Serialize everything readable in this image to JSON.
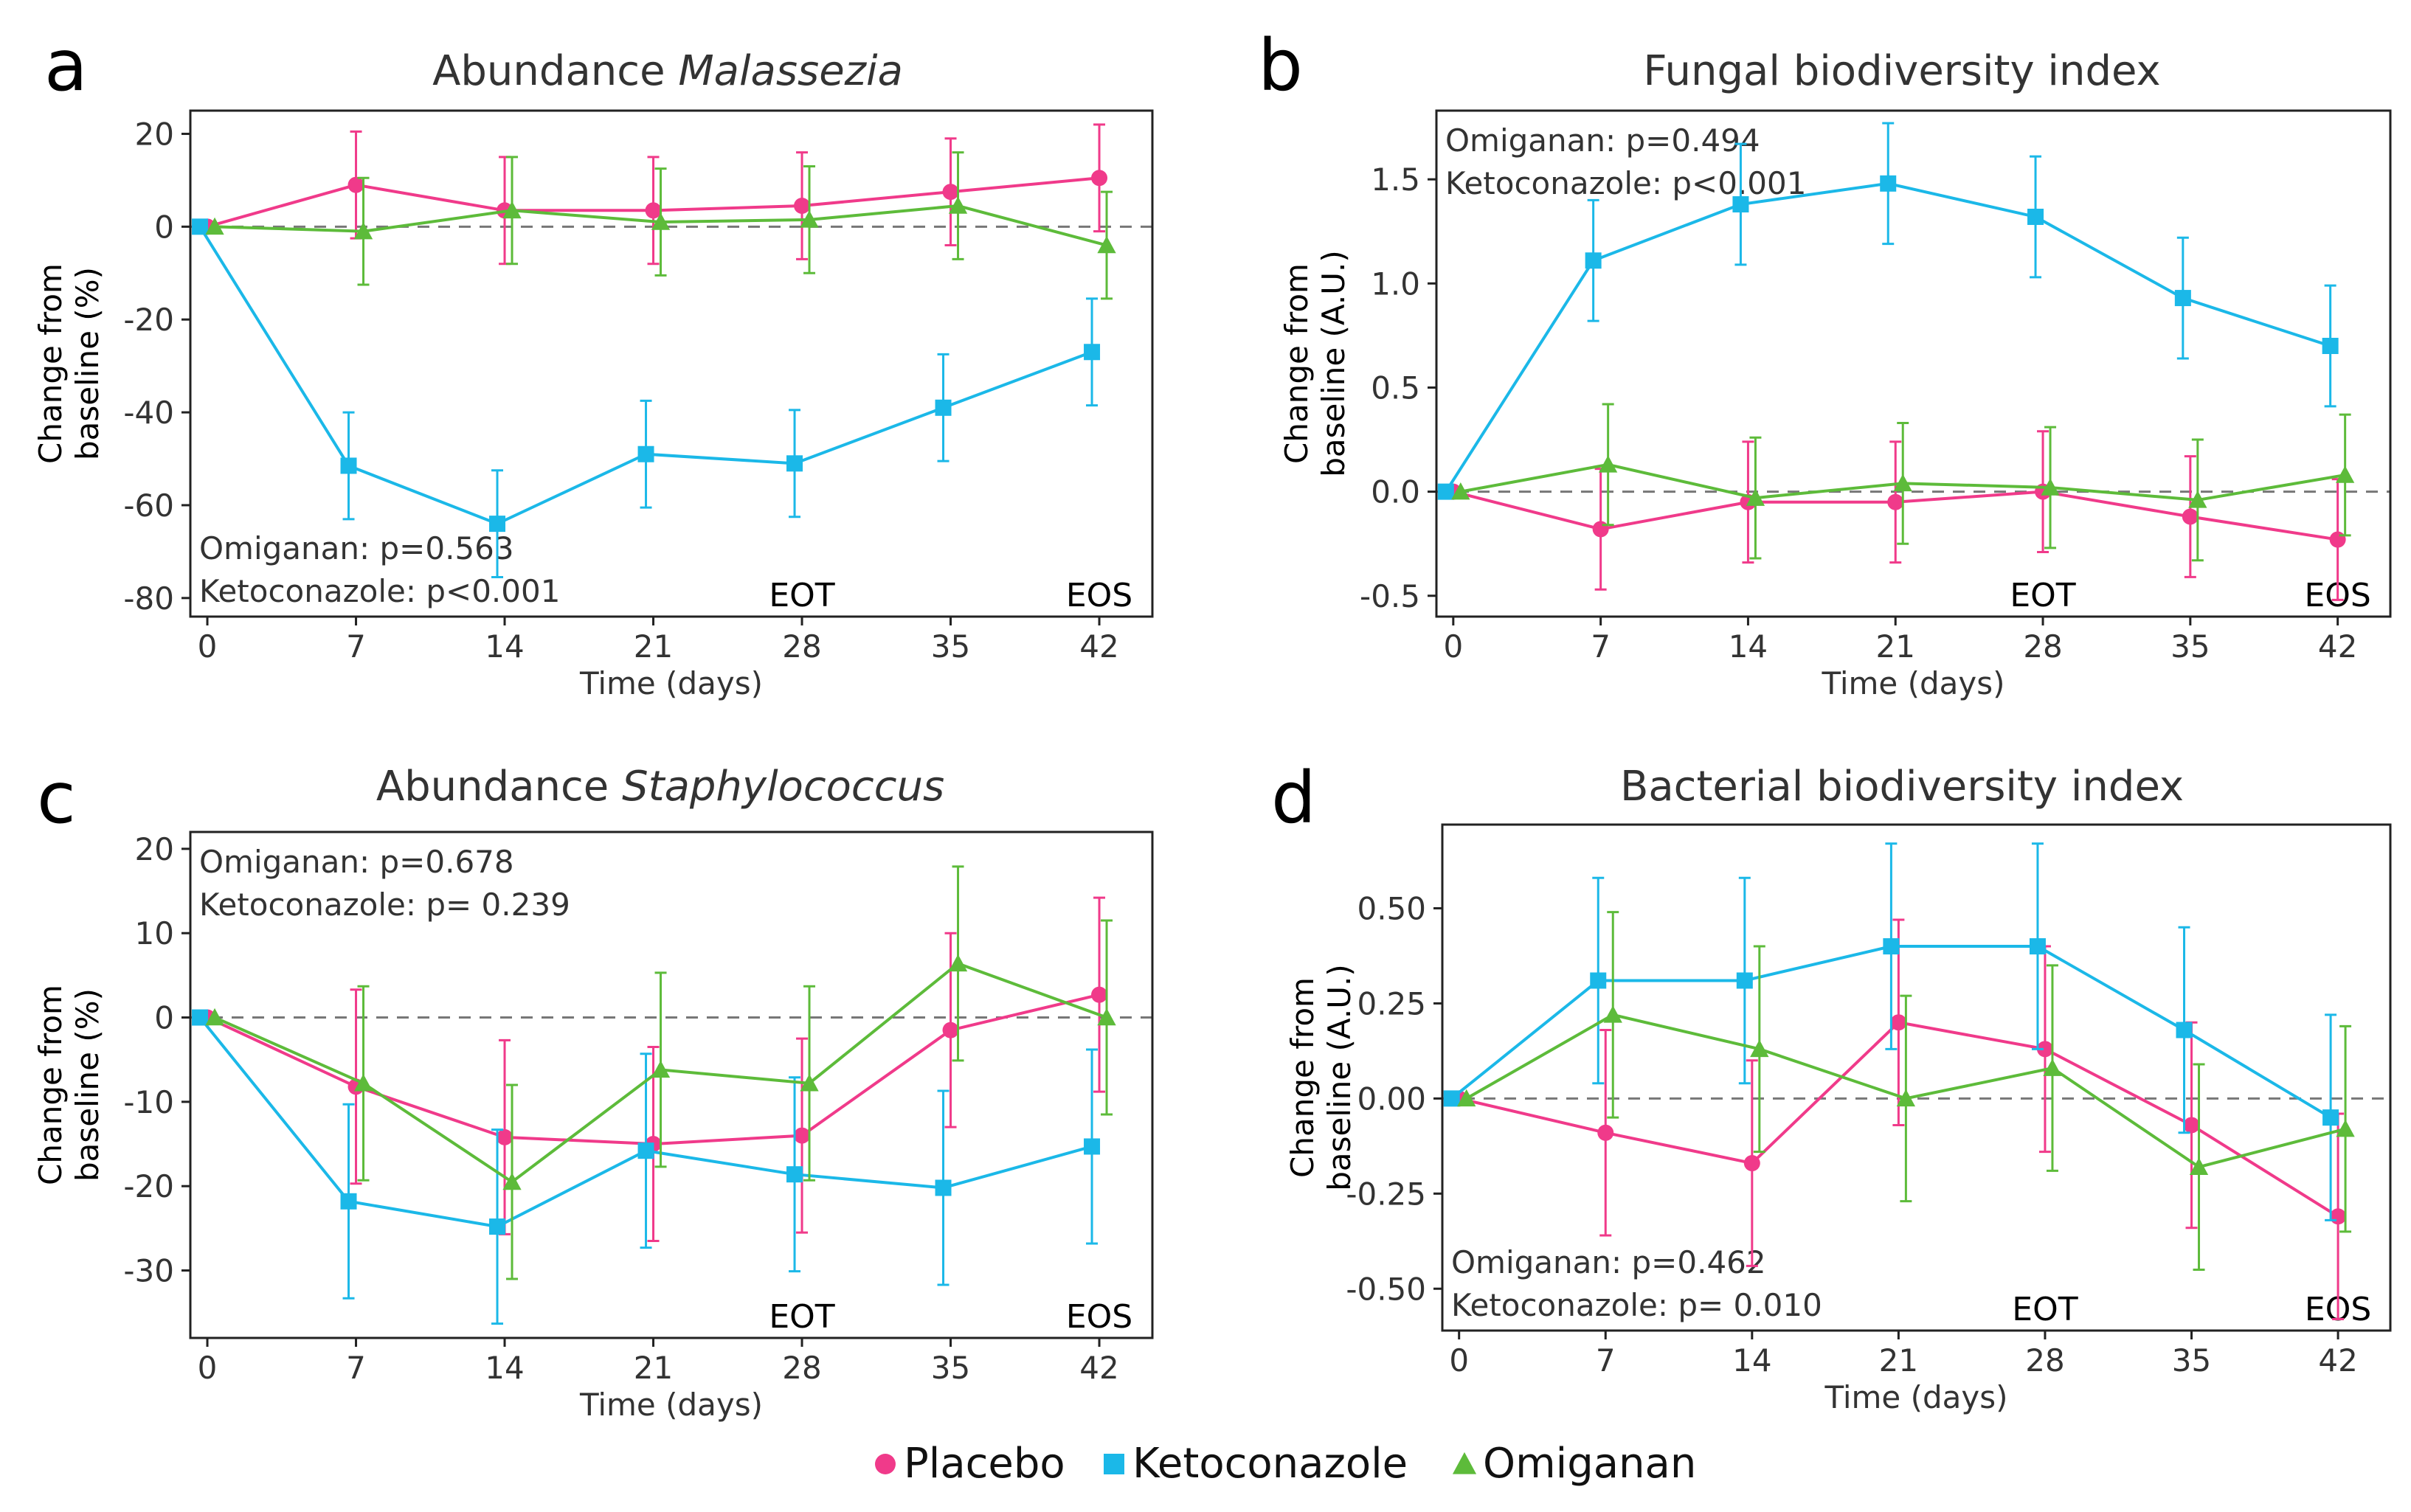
{
  "colors": {
    "placebo": "#F03A8A",
    "ketoconazole": "#1BB8E8",
    "omiganan": "#5DBB3A",
    "axis": "#222222",
    "text": "#333333",
    "zero_line": "#777777"
  },
  "legend": [
    {
      "name": "Placebo",
      "marker": "circle",
      "color": "#F03A8A"
    },
    {
      "name": "Ketoconazole",
      "marker": "square",
      "color": "#1BB8E8"
    },
    {
      "name": "Omiganan",
      "marker": "triangle",
      "color": "#5DBB3A"
    }
  ],
  "chart_data": [
    {
      "panel": "a",
      "type": "line",
      "title_prefix": "Abundance ",
      "title_italic": "Malassezia",
      "xlabel": "Time (days)",
      "ylabel_lines": [
        "Change from",
        "baseline (%)"
      ],
      "x": [
        0,
        7,
        14,
        21,
        28,
        35,
        42
      ],
      "xlim": [
        -0.8,
        44.5
      ],
      "ylim": [
        -84,
        25
      ],
      "yticks": [
        20,
        0,
        -20,
        -40,
        -60,
        -80
      ],
      "ytick_labels": [
        "20",
        "0",
        "-20",
        "-40",
        "-60",
        "-80"
      ],
      "stats": [
        "Omiganan: p=0.563",
        "Ketoconazole: p<0.001"
      ],
      "stats_position": "bottom-left",
      "markers": [
        {
          "label": "EOT",
          "x": 28
        },
        {
          "label": "EOS",
          "x": 42
        }
      ],
      "series": [
        {
          "name": "Placebo",
          "values": [
            0,
            9,
            3.5,
            3.5,
            4.5,
            7.5,
            10.5
          ],
          "errors": [
            0,
            11.5,
            11.5,
            11.5,
            11.5,
            11.5,
            11.5
          ]
        },
        {
          "name": "Ketoconazole",
          "values": [
            0,
            -51.5,
            -64,
            -49,
            -51,
            -39,
            -27
          ],
          "errors": [
            0,
            11.5,
            11.5,
            11.5,
            11.5,
            11.5,
            11.5
          ]
        },
        {
          "name": "Omiganan",
          "values": [
            0,
            -1,
            3.5,
            1,
            1.5,
            4.5,
            -4
          ],
          "errors": [
            0,
            11.5,
            11.5,
            11.5,
            11.5,
            11.5,
            11.5
          ]
        }
      ]
    },
    {
      "panel": "b",
      "type": "line",
      "title_prefix": "Fungal biodiversity index",
      "title_italic": "",
      "xlabel": "Time (days)",
      "ylabel_lines": [
        "Change from",
        "baseline (A.U.)"
      ],
      "x": [
        0,
        7,
        14,
        21,
        28,
        35,
        42
      ],
      "xlim": [
        -0.8,
        44.5
      ],
      "ylim": [
        -0.6,
        1.83
      ],
      "yticks": [
        1.5,
        1.0,
        0.5,
        0.0,
        -0.5
      ],
      "ytick_labels": [
        "1.5",
        "1.0",
        "0.5",
        "0.0",
        "-0.5"
      ],
      "stats": [
        "Omiganan: p=0.494",
        "Ketoconazole: p<0.001"
      ],
      "stats_position": "top-left",
      "markers": [
        {
          "label": "EOT",
          "x": 28
        },
        {
          "label": "EOS",
          "x": 42
        }
      ],
      "series": [
        {
          "name": "Placebo",
          "values": [
            0,
            -0.18,
            -0.05,
            -0.05,
            0.0,
            -0.12,
            -0.23
          ],
          "errors": [
            0,
            0.29,
            0.29,
            0.29,
            0.29,
            0.29,
            0.29
          ]
        },
        {
          "name": "Ketoconazole",
          "values": [
            0,
            1.11,
            1.38,
            1.48,
            1.32,
            0.93,
            0.7
          ],
          "errors": [
            0,
            0.29,
            0.29,
            0.29,
            0.29,
            0.29,
            0.29
          ]
        },
        {
          "name": "Omiganan",
          "values": [
            0,
            0.13,
            -0.03,
            0.04,
            0.02,
            -0.04,
            0.08
          ],
          "errors": [
            0,
            0.29,
            0.29,
            0.29,
            0.29,
            0.29,
            0.29
          ]
        }
      ]
    },
    {
      "panel": "c",
      "type": "line",
      "title_prefix": "Abundance ",
      "title_italic": "Staphylococcus",
      "xlabel": "Time (days)",
      "ylabel_lines": [
        "Change from",
        "baseline (%)"
      ],
      "x": [
        0,
        7,
        14,
        21,
        28,
        35,
        42
      ],
      "xlim": [
        -0.8,
        44.5
      ],
      "ylim": [
        -38,
        22
      ],
      "yticks": [
        20,
        10,
        0,
        -10,
        -20,
        -30
      ],
      "ytick_labels": [
        "20",
        "10",
        "0",
        "-10",
        "-20",
        "-30"
      ],
      "stats": [
        "Omiganan: p=0.678",
        "Ketoconazole: p= 0.239"
      ],
      "stats_position": "top-left",
      "markers": [
        {
          "label": "EOT",
          "x": 28
        },
        {
          "label": "EOS",
          "x": 42
        }
      ],
      "series": [
        {
          "name": "Placebo",
          "values": [
            0,
            -8.2,
            -14.2,
            -15,
            -14,
            -1.5,
            2.7
          ],
          "errors": [
            0,
            11.5,
            11.5,
            11.5,
            11.5,
            11.5,
            11.5
          ]
        },
        {
          "name": "Ketoconazole",
          "values": [
            0,
            -21.8,
            -24.8,
            -15.8,
            -18.6,
            -20.2,
            -15.3
          ],
          "errors": [
            0,
            11.5,
            11.5,
            11.5,
            11.5,
            11.5,
            11.5
          ]
        },
        {
          "name": "Omiganan",
          "values": [
            0,
            -7.8,
            -19.5,
            -6.2,
            -7.8,
            6.4,
            0
          ],
          "errors": [
            0,
            11.5,
            11.5,
            11.5,
            11.5,
            11.5,
            11.5
          ]
        }
      ]
    },
    {
      "panel": "d",
      "type": "line",
      "title_prefix": "Bacterial biodiversity index",
      "title_italic": "",
      "xlabel": "Time (days)",
      "ylabel_lines": [
        "Change from",
        "baseline (A.U.)"
      ],
      "x": [
        0,
        7,
        14,
        21,
        28,
        35,
        42
      ],
      "xlim": [
        -0.8,
        44.5
      ],
      "ylim": [
        -0.61,
        0.72
      ],
      "yticks": [
        0.5,
        0.25,
        0.0,
        -0.25,
        -0.5
      ],
      "ytick_labels": [
        "0.50",
        "0.25",
        "0.00",
        "-0.25",
        "-0.50"
      ],
      "stats": [
        "Omiganan: p=0.462",
        "Ketoconazole: p= 0.010"
      ],
      "stats_position": "bottom-left",
      "markers": [
        {
          "label": "EOT",
          "x": 28
        },
        {
          "label": "EOS",
          "x": 42
        }
      ],
      "series": [
        {
          "name": "Placebo",
          "values": [
            0,
            -0.09,
            -0.17,
            0.2,
            0.13,
            -0.07,
            -0.31
          ],
          "errors": [
            0,
            0.27,
            0.27,
            0.27,
            0.27,
            0.27,
            0.27
          ]
        },
        {
          "name": "Ketoconazole",
          "values": [
            0,
            0.31,
            0.31,
            0.4,
            0.4,
            0.18,
            -0.05
          ],
          "errors": [
            0,
            0.27,
            0.27,
            0.27,
            0.27,
            0.27,
            0.27
          ]
        },
        {
          "name": "Omiganan",
          "values": [
            0,
            0.22,
            0.13,
            0.0,
            0.08,
            -0.18,
            -0.08
          ],
          "errors": [
            0,
            0.27,
            0.27,
            0.27,
            0.27,
            0.27,
            0.27
          ]
        }
      ]
    }
  ]
}
